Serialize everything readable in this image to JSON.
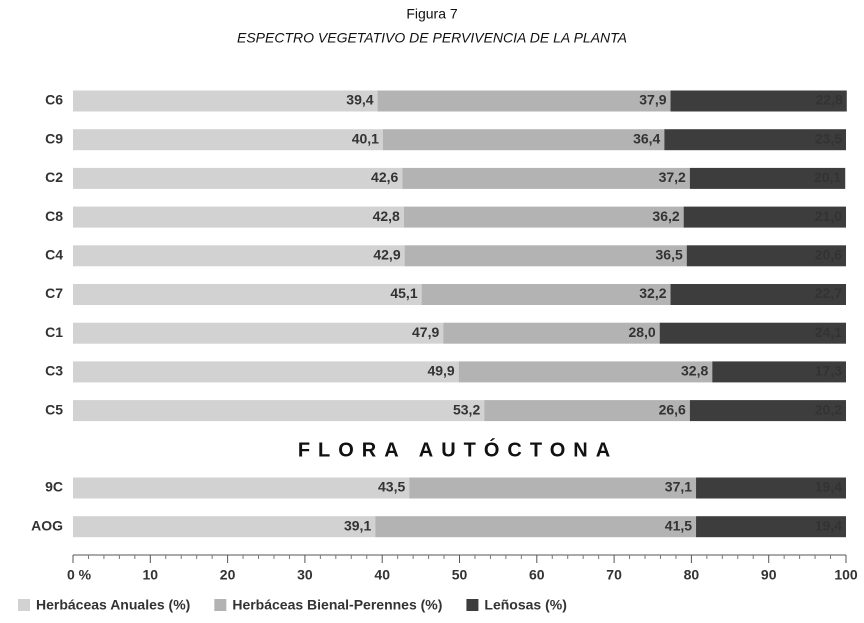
{
  "chart_data": {
    "type": "stacked_barh",
    "title": "Figura 7",
    "subtitle": "ESPECTRO VEGETATIVO DE PERVIVENCIA DE LA PLANTA",
    "annotation": "FLORA AUTÓCTONA",
    "categories": [
      "C6",
      "C9",
      "C2",
      "C8",
      "C4",
      "C7",
      "C1",
      "C3",
      "C5",
      "9C",
      "AOG"
    ],
    "series": [
      {
        "name": "Herbáceas Anuales (%)",
        "color": "#d2d2d2",
        "values": [
          39.4,
          40.1,
          42.6,
          42.8,
          42.9,
          45.1,
          47.9,
          49.9,
          53.2,
          43.5,
          39.1
        ],
        "value_labels": [
          "39,4",
          "40,1",
          "42,6",
          "42,8",
          "42,9",
          "45,1",
          "47,9",
          "49,9",
          "53,2",
          "43,5",
          "39,1"
        ]
      },
      {
        "name": "Herbáceas Bienal-Perennes (%)",
        "color": "#b3b3b3",
        "values": [
          37.9,
          36.4,
          37.2,
          36.2,
          36.5,
          32.2,
          28.0,
          32.8,
          26.6,
          37.1,
          41.5
        ],
        "value_labels": [
          "37,9",
          "36,4",
          "37,2",
          "36,2",
          "36,5",
          "32,2",
          "28,0",
          "32,8",
          "26,6",
          "37,1",
          "41,5"
        ]
      },
      {
        "name": "Leñosas (%)",
        "color": "#3d3d3d",
        "values": [
          22.8,
          23.5,
          20.1,
          21.0,
          20.6,
          22.7,
          24.1,
          17.3,
          20.2,
          19.4,
          19.4
        ],
        "value_labels": [
          "22,8",
          "23,5",
          "20,1",
          "21,0",
          "20,6",
          "22,7",
          "24,1",
          "17,3",
          "20,2",
          "19,4",
          "19,4"
        ]
      }
    ],
    "xlim": [
      0,
      100
    ],
    "xticks": [
      {
        "value": 0,
        "label": "0 %"
      },
      10,
      20,
      30,
      40,
      50,
      60,
      70,
      80,
      90,
      100
    ],
    "legend": "bottom"
  }
}
